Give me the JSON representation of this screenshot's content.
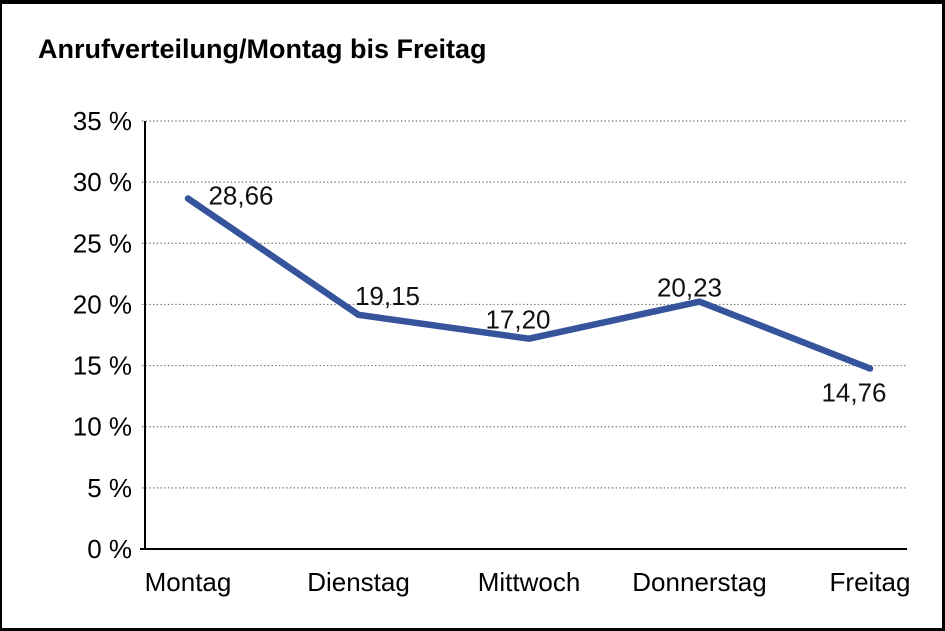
{
  "title": "Anrufverteilung/Montag bis Freitag",
  "colors": {
    "line": "#35549B",
    "grid": "#6B6B6B",
    "axis": "#000000",
    "text": "#000000",
    "background": "#FFFFFF",
    "frame_border": "#000000"
  },
  "chart_data": {
    "type": "line",
    "title": "Anrufverteilung/Montag bis Freitag",
    "categories": [
      "Montag",
      "Dienstag",
      "Mittwoch",
      "Donnerstag",
      "Freitag"
    ],
    "values": [
      28.66,
      19.15,
      17.2,
      20.23,
      14.76
    ],
    "value_labels": [
      "28,66",
      "19,15",
      "17,20",
      "20,23",
      "14,76"
    ],
    "unit": "%",
    "ylim": [
      0,
      35
    ],
    "yticks": [
      0,
      5,
      10,
      15,
      20,
      25,
      30,
      35
    ],
    "ytick_labels": [
      "0 %",
      "5 %",
      "10 %",
      "15 %",
      "20 %",
      "25 %",
      "30 %",
      "35 %"
    ],
    "xlabel": "",
    "ylabel": "",
    "grid": "horizontal-dotted",
    "legend": "none",
    "series": [
      {
        "name": "Anrufverteilung",
        "values": [
          28.66,
          19.15,
          17.2,
          20.23,
          14.76
        ],
        "color": "#35549B"
      }
    ]
  }
}
